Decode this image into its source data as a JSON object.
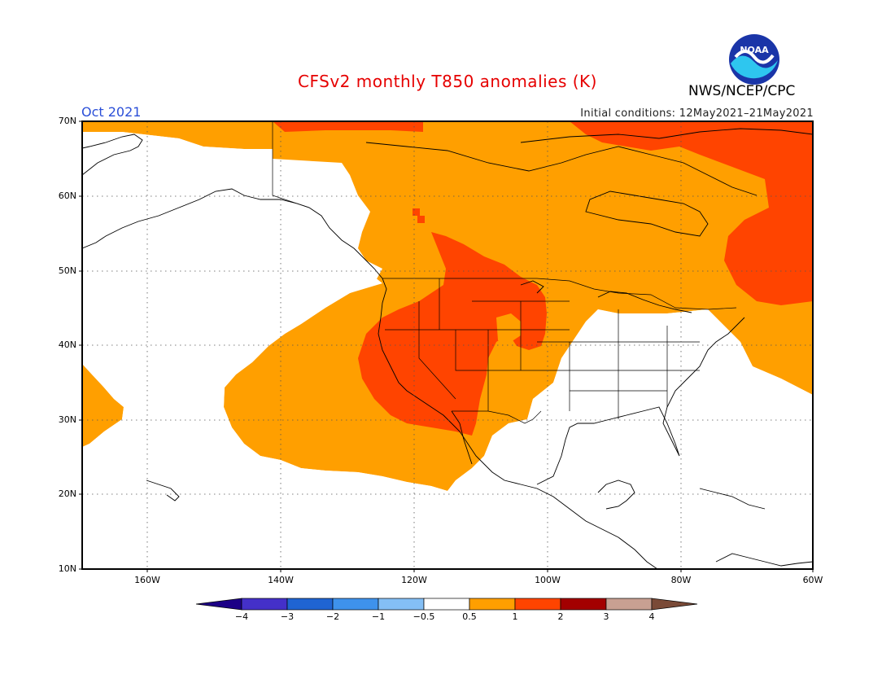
{
  "header": {
    "title": "CFSv2 monthly T850 anomalies (K)",
    "agency": "NWS/NCEP/CPC",
    "month": "Oct 2021",
    "initial_conditions": "Initial conditions: 12May2021–21May2021",
    "logo_text": "NOAA"
  },
  "colors": {
    "title": "#e60000",
    "month": "#2b4fd8",
    "anom_05_1": "#ff9f00",
    "anom_1_2": "#ff4400",
    "anom_2_3": "#a30000",
    "coast": "#000000",
    "frame": "#000000"
  },
  "map": {
    "projection": "cylindrical",
    "lon_range": [
      -172,
      -60
    ],
    "lat_range": [
      10,
      70
    ],
    "lat_labels": [
      "70N",
      "60N",
      "50N",
      "40N",
      "30N",
      "20N",
      "10N"
    ],
    "lon_labels": [
      "160W",
      "140W",
      "120W",
      "100W",
      "80W",
      "60W"
    ],
    "grid": "dotted",
    "anomaly_regions": [
      {
        "category": "0.5 to 1",
        "description": "orange"
      },
      {
        "category": "1 to 2",
        "description": "red-orange"
      }
    ]
  },
  "colorbar": {
    "labels": [
      "−4",
      "−3",
      "−2",
      "−1",
      "−0.5",
      "0.5",
      "1",
      "2",
      "3",
      "4"
    ],
    "colors": [
      "#1c0086",
      "#4430c9",
      "#1f64d2",
      "#3e92ec",
      "#84bff5",
      "#ffffff",
      "#ff9f00",
      "#ff4400",
      "#a30000",
      "#c8a092",
      "#7a4a37"
    ]
  }
}
